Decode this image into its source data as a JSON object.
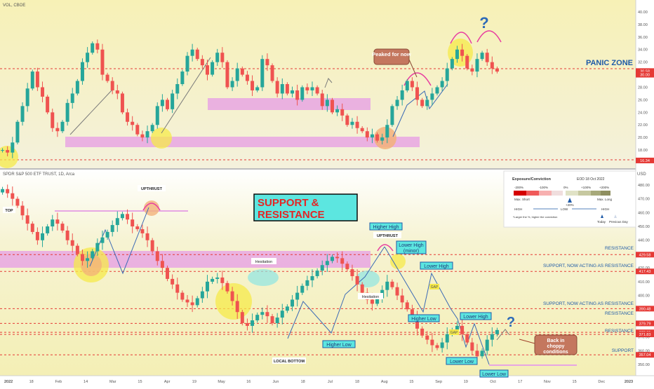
{
  "top_panel": {
    "symbol_label": "VOL, CBOE",
    "panic_zone_label": "PANIC ZONE",
    "peaked_note": "Peaked for now",
    "question_mark": "?",
    "price_tags": [
      "30.58",
      "30.00",
      "16.34"
    ],
    "y_ticks": [
      "40.00",
      "38.00",
      "36.00",
      "34.00",
      "32.00",
      "30.00",
      "28.00",
      "26.00",
      "24.00",
      "22.00",
      "20.00",
      "18.00"
    ]
  },
  "bottom_panel": {
    "symbol_label": "SPDR S&P 500 ETF TRUST, 1D, Arca",
    "currency_label": "USD",
    "title_line1": "SUPPORT &",
    "title_line2": "RESISTANCE",
    "question_mark": "?",
    "annotations": {
      "top": "TOP",
      "upthrust_1": "UPTHRUST",
      "upthrust_2": "UPTHRUST",
      "hesitation_1": "Hesitation",
      "hesitation_2": "Hesitation",
      "local_bottom": "LOCAL BOTTOM",
      "higher_low_1": "Higher Low",
      "higher_high": "Higher High",
      "lower_high_minor_1": "Lower High",
      "lower_high_minor_2": "(minor)",
      "lower_high_1": "Lower High",
      "lower_high_2": "Lower High",
      "higher_low_2": "Higher Low",
      "lower_low_1": "Lower Low",
      "lower_low_2": "Lower Low",
      "gap_1": "GAP",
      "gap_2": "GAP",
      "back_choppy_1": "Back in",
      "back_choppy_2": "choppy",
      "back_choppy_3": "conditions"
    },
    "level_labels": {
      "resistance_top": "RESISTANCE",
      "support_now_resist_1": "SUPPORT, NOW ACTING AS RESISTANCE",
      "support_now_resist_2": "SUPPORT, NOW ACTING AS RESISTANCE",
      "resistance_mid": "RESISTANCE",
      "resistance_low": "RESISTANCE",
      "support": "SUPPORT"
    },
    "price_tags": [
      "429.58",
      "417.43",
      "390.48",
      "379.79",
      "373.31",
      "371.83",
      "357.04"
    ],
    "y_ticks": [
      "480.00",
      "470.00",
      "460.00",
      "450.00",
      "440.00",
      "430.00",
      "420.00",
      "410.00",
      "400.00",
      "390.00",
      "380.00",
      "370.00",
      "360.00",
      "350.00"
    ]
  },
  "legend_box": {
    "title": "Exposure/Conviction",
    "date": "EOD 18 Oct 2022",
    "scale_left": [
      "-200%",
      "-100%"
    ],
    "scale_mid": "0%",
    "scale_right": [
      "+100%",
      "+200%"
    ],
    "marker_value": "+20%",
    "max_short": "Max. Short",
    "max_long": "Max. Long",
    "high_left": "HIGH",
    "low": "LOW",
    "high_right": "HIGH",
    "footnote": "*Larger the %, higher the conviction",
    "today": "Today",
    "previous_day": "Previous Day"
  },
  "x_axis": {
    "labels": [
      "2022",
      "18",
      "Feb",
      "14",
      "Mar",
      "15",
      "Apr",
      "19",
      "May",
      "16",
      "Jun",
      "18",
      "Jul",
      "18",
      "Aug",
      "15",
      "Sep",
      "19",
      "Oct",
      "17",
      "Nov",
      "15",
      "Dec",
      "2023"
    ]
  },
  "colors": {
    "up_candle": "#26a69a",
    "down_candle": "#ef5350",
    "zone_pink": "#e9a8e0",
    "level_red": "#e53935",
    "panel_yellow": "#f6f1bd",
    "highlight_yellow": "#f5e94a",
    "teal_box": "#5ce6e0",
    "label_blue": "#1e5aa8"
  },
  "chart_data": [
    {
      "type": "candlestick",
      "title": "VOL, CBOE",
      "ylim": [
        16,
        41
      ],
      "y_axis_ticks": [
        40,
        38,
        36,
        34,
        32,
        30,
        28,
        26,
        24,
        22,
        20,
        18
      ],
      "x_ticks": [
        "2022",
        "18",
        "Feb",
        "14",
        "Mar",
        "15",
        "Apr",
        "19",
        "May",
        "16",
        "Jun",
        "18",
        "Jul",
        "18",
        "Aug",
        "15",
        "Sep",
        "19",
        "Oct",
        "17",
        "Nov",
        "15",
        "Dec",
        "2023"
      ],
      "horizontal_levels": [
        30.58,
        30.0,
        16.34
      ],
      "zones": [
        {
          "label": "upper pink zone",
          "low": 24.0,
          "high": 25.3
        },
        {
          "label": "lower pink zone",
          "low": 18.8,
          "high": 20.0
        }
      ],
      "close_series": [
        18.0,
        17.6,
        19.2,
        22.5,
        25.0,
        27.8,
        30.5,
        28.0,
        26.5,
        24.0,
        21.5,
        21.0,
        22.5,
        25.5,
        27.0,
        29.0,
        32.0,
        33.5,
        35.0,
        34.0,
        30.0,
        29.0,
        27.5,
        27.0,
        24.0,
        22.5,
        22.0,
        20.5,
        20.0,
        21.0,
        22.0,
        25.0,
        26.0,
        24.5,
        27.0,
        28.5,
        30.5,
        33.0,
        34.0,
        32.5,
        31.5,
        30.0,
        32.0,
        33.5,
        32.0,
        28.0,
        29.0,
        31.0,
        30.0,
        29.0,
        27.5,
        28.0,
        32.5,
        31.5,
        29.0,
        27.0,
        28.5,
        27.0,
        27.5,
        26.0,
        28.0,
        27.5,
        28.0,
        27.0,
        25.0,
        26.0,
        24.0,
        24.5,
        23.5,
        22.0,
        22.5,
        21.5,
        21.0,
        20.0,
        20.5,
        19.5,
        20.0,
        22.0,
        25.0,
        26.0,
        27.5,
        29.0,
        28.0,
        26.0,
        25.0,
        26.0,
        27.0,
        28.0,
        29.0,
        31.0,
        32.5,
        34.0,
        33.0,
        31.0,
        30.5,
        32.5,
        33.5,
        32.0,
        31.0,
        30.5
      ]
    },
    {
      "type": "candlestick",
      "title": "SPDR S&P 500 ETF TRUST, 1D, Arca",
      "ylim": [
        346,
        483
      ],
      "y_axis_ticks": [
        480,
        470,
        460,
        450,
        440,
        430,
        420,
        410,
        400,
        390,
        380,
        370,
        360,
        350
      ],
      "x_ticks": [
        "2022",
        "18",
        "Feb",
        "14",
        "Mar",
        "15",
        "Apr",
        "19",
        "May",
        "16",
        "Jun",
        "18",
        "Jul",
        "18",
        "Aug",
        "15",
        "Sep",
        "19",
        "Oct",
        "17",
        "Nov",
        "15",
        "Dec",
        "2023"
      ],
      "horizontal_levels": [
        {
          "value": 429.58,
          "label": "RESISTANCE"
        },
        {
          "value": 417.43,
          "label": "SUPPORT, NOW ACTING AS RESISTANCE"
        },
        {
          "value": 390.48,
          "label": "SUPPORT, NOW ACTING AS RESISTANCE"
        },
        {
          "value": 379.79,
          "label": "RESISTANCE"
        },
        {
          "value": 373.31,
          "label": ""
        },
        {
          "value": 371.83,
          "label": "RESISTANCE"
        },
        {
          "value": 357.04,
          "label": "SUPPORT"
        }
      ],
      "zones": [
        {
          "label": "pink zone",
          "low": 418.5,
          "high": 430.5
        }
      ],
      "close_series": [
        477.0,
        474.0,
        470.0,
        465.0,
        458.0,
        452.0,
        446.0,
        440.0,
        445.0,
        450.0,
        455.0,
        452.0,
        447.0,
        440.0,
        436.0,
        430.0,
        425.0,
        427.0,
        432.0,
        438.0,
        442.0,
        446.0,
        451.0,
        456.0,
        459.0,
        455.0,
        450.0,
        448.0,
        445.0,
        440.0,
        432.0,
        425.0,
        420.0,
        412.0,
        408.0,
        402.0,
        397.0,
        395.0,
        393.0,
        398.0,
        403.0,
        410.0,
        412.0,
        413.0,
        409.0,
        403.0,
        396.0,
        388.0,
        380.0,
        378.0,
        382.0,
        386.0,
        388.0,
        385.0,
        380.0,
        384.0,
        389.0,
        392.0,
        397.0,
        402.0,
        407.0,
        411.0,
        414.0,
        418.0,
        422.0,
        425.0,
        428.0,
        427.0,
        423.0,
        419.0,
        414.0,
        408.0,
        402.0,
        397.0,
        394.0,
        398.0,
        404.0,
        410.0,
        406.0,
        400.0,
        395.0,
        390.0,
        384.0,
        376.0,
        371.0,
        368.0,
        364.0,
        362.0,
        366.0,
        372.0,
        375.0,
        378.0,
        372.0,
        366.0,
        360.0,
        356.0,
        360.0,
        368.0,
        372.0,
        375.0
      ]
    }
  ]
}
